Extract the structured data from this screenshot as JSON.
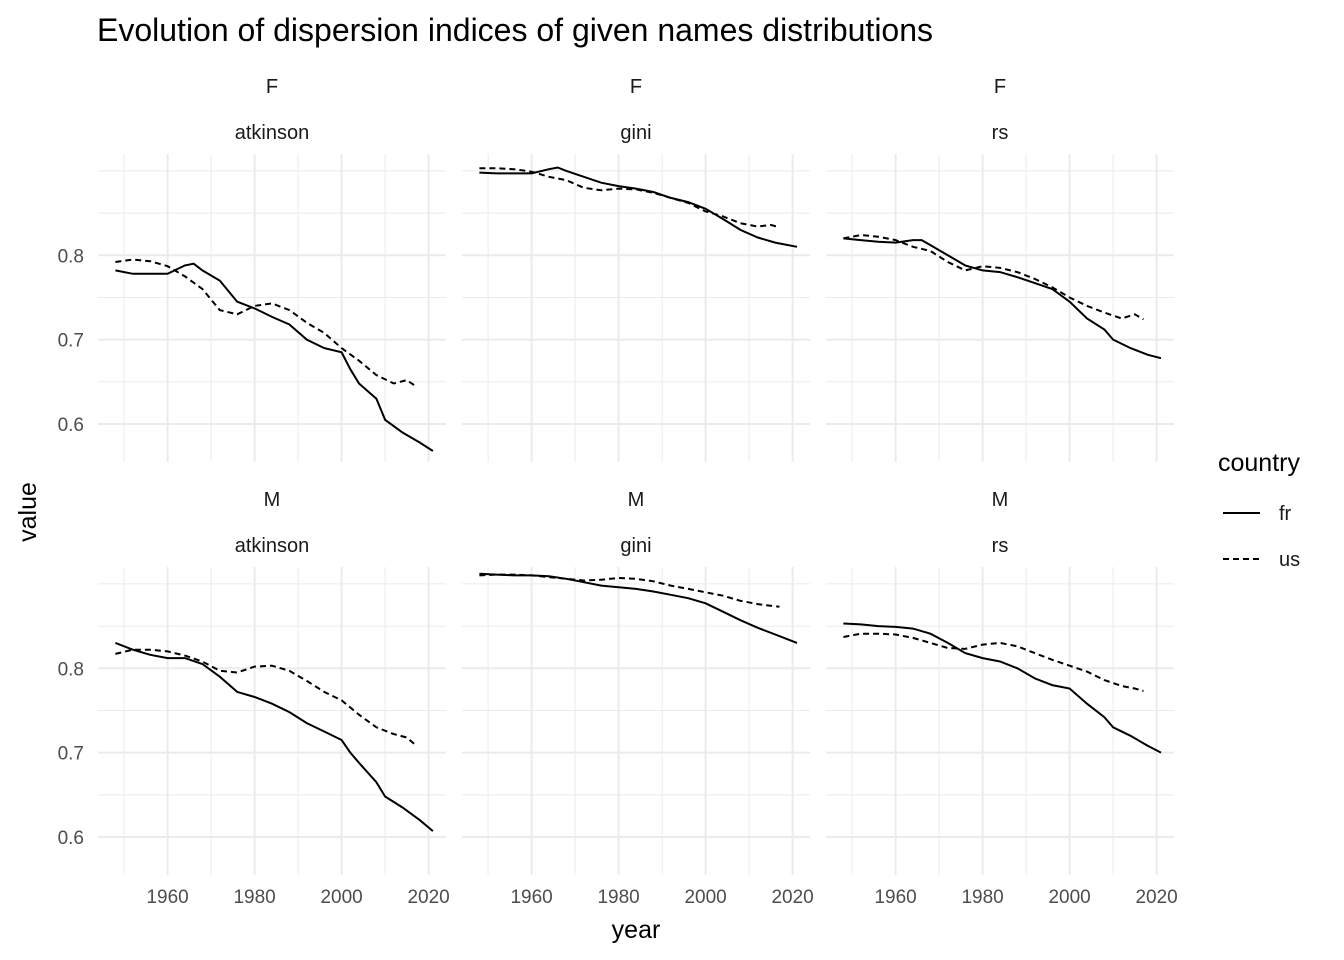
{
  "chart_data": {
    "type": "line",
    "title": "Evolution of dispersion indices of given names distributions",
    "xlabel": "year",
    "ylabel": "value",
    "x_ticks": [
      1960,
      1980,
      2000,
      2020
    ],
    "xlim": [
      1944,
      2024
    ],
    "legend": {
      "title": "country",
      "placement": "right",
      "entries": [
        {
          "label": "fr",
          "linetype": "solid"
        },
        {
          "label": "us",
          "linetype": "dashed"
        }
      ]
    },
    "grid": true,
    "rows": [
      {
        "strip": "F",
        "ylim": [
          0.555,
          0.92
        ],
        "y_ticks": [
          0.6,
          0.7,
          0.8
        ],
        "y_tick_labels": [
          "0.6",
          "0.7",
          "0.8"
        ]
      },
      {
        "strip": "M",
        "ylim": [
          0.555,
          0.92
        ],
        "y_ticks": [
          0.6,
          0.7,
          0.8
        ],
        "y_tick_labels": [
          "0.6",
          "0.7",
          "0.8"
        ]
      }
    ],
    "panels": [
      {
        "row": 0,
        "col": 0,
        "strip_top": "F",
        "strip_bottom": "atkinson",
        "series": [
          {
            "name": "fr",
            "x": [
              1948,
              1952,
              1956,
              1960,
              1964,
              1966,
              1968,
              1972,
              1976,
              1980,
              1984,
              1988,
              1992,
              1996,
              2000,
              2002,
              2004,
              2008,
              2010,
              2014,
              2018,
              2021
            ],
            "y": [
              0.782,
              0.778,
              0.778,
              0.778,
              0.788,
              0.79,
              0.782,
              0.77,
              0.745,
              0.737,
              0.727,
              0.718,
              0.7,
              0.69,
              0.685,
              0.665,
              0.648,
              0.63,
              0.605,
              0.59,
              0.578,
              0.568
            ]
          },
          {
            "name": "us",
            "x": [
              1948,
              1952,
              1956,
              1960,
              1964,
              1968,
              1972,
              1976,
              1980,
              1984,
              1988,
              1992,
              1996,
              2000,
              2004,
              2008,
              2012,
              2015,
              2017
            ],
            "y": [
              0.792,
              0.795,
              0.793,
              0.787,
              0.775,
              0.76,
              0.735,
              0.73,
              0.74,
              0.743,
              0.735,
              0.72,
              0.708,
              0.69,
              0.675,
              0.658,
              0.648,
              0.652,
              0.645
            ]
          }
        ]
      },
      {
        "row": 0,
        "col": 1,
        "strip_top": "F",
        "strip_bottom": "gini",
        "series": [
          {
            "name": "fr",
            "x": [
              1948,
              1952,
              1956,
              1960,
              1964,
              1966,
              1968,
              1972,
              1976,
              1980,
              1984,
              1988,
              1992,
              1996,
              2000,
              2004,
              2008,
              2012,
              2016,
              2021
            ],
            "y": [
              0.898,
              0.897,
              0.897,
              0.897,
              0.902,
              0.904,
              0.9,
              0.893,
              0.886,
              0.882,
              0.879,
              0.875,
              0.868,
              0.863,
              0.855,
              0.843,
              0.83,
              0.821,
              0.815,
              0.81
            ]
          },
          {
            "name": "us",
            "x": [
              1948,
              1952,
              1956,
              1960,
              1964,
              1968,
              1972,
              1976,
              1980,
              1984,
              1988,
              1992,
              1996,
              2000,
              2004,
              2008,
              2012,
              2015,
              2017
            ],
            "y": [
              0.903,
              0.903,
              0.902,
              0.899,
              0.893,
              0.889,
              0.88,
              0.877,
              0.879,
              0.878,
              0.874,
              0.868,
              0.862,
              0.852,
              0.846,
              0.838,
              0.834,
              0.836,
              0.833
            ]
          }
        ]
      },
      {
        "row": 0,
        "col": 2,
        "strip_top": "F",
        "strip_bottom": "rs",
        "series": [
          {
            "name": "fr",
            "x": [
              1948,
              1952,
              1956,
              1960,
              1964,
              1966,
              1968,
              1972,
              1976,
              1980,
              1984,
              1988,
              1992,
              1996,
              2000,
              2004,
              2008,
              2010,
              2014,
              2018,
              2021
            ],
            "y": [
              0.82,
              0.818,
              0.816,
              0.815,
              0.818,
              0.818,
              0.812,
              0.8,
              0.788,
              0.782,
              0.78,
              0.774,
              0.767,
              0.76,
              0.745,
              0.725,
              0.712,
              0.7,
              0.69,
              0.682,
              0.678
            ]
          },
          {
            "name": "us",
            "x": [
              1948,
              1952,
              1956,
              1960,
              1964,
              1968,
              1972,
              1976,
              1980,
              1984,
              1988,
              1992,
              1996,
              2000,
              2004,
              2008,
              2012,
              2015,
              2017
            ],
            "y": [
              0.82,
              0.824,
              0.822,
              0.818,
              0.81,
              0.805,
              0.792,
              0.782,
              0.787,
              0.785,
              0.78,
              0.772,
              0.762,
              0.75,
              0.74,
              0.732,
              0.725,
              0.73,
              0.724
            ]
          }
        ]
      },
      {
        "row": 1,
        "col": 0,
        "strip_top": "M",
        "strip_bottom": "atkinson",
        "series": [
          {
            "name": "fr",
            "x": [
              1948,
              1952,
              1956,
              1960,
              1964,
              1968,
              1972,
              1976,
              1980,
              1984,
              1988,
              1992,
              1996,
              2000,
              2002,
              2004,
              2008,
              2010,
              2014,
              2018,
              2021
            ],
            "y": [
              0.83,
              0.822,
              0.816,
              0.812,
              0.812,
              0.805,
              0.79,
              0.772,
              0.766,
              0.758,
              0.748,
              0.735,
              0.725,
              0.715,
              0.7,
              0.688,
              0.665,
              0.648,
              0.635,
              0.62,
              0.607
            ]
          },
          {
            "name": "us",
            "x": [
              1948,
              1952,
              1956,
              1960,
              1964,
              1968,
              1972,
              1976,
              1980,
              1984,
              1988,
              1992,
              1996,
              2000,
              2004,
              2008,
              2012,
              2015,
              2017
            ],
            "y": [
              0.817,
              0.822,
              0.822,
              0.82,
              0.815,
              0.808,
              0.797,
              0.795,
              0.802,
              0.803,
              0.797,
              0.785,
              0.772,
              0.762,
              0.745,
              0.73,
              0.722,
              0.718,
              0.709
            ]
          }
        ]
      },
      {
        "row": 1,
        "col": 1,
        "strip_top": "M",
        "strip_bottom": "gini",
        "series": [
          {
            "name": "fr",
            "x": [
              1948,
              1952,
              1956,
              1960,
              1964,
              1968,
              1972,
              1976,
              1980,
              1984,
              1988,
              1992,
              1996,
              2000,
              2004,
              2008,
              2012,
              2016,
              2021
            ],
            "y": [
              0.912,
              0.911,
              0.91,
              0.91,
              0.909,
              0.906,
              0.902,
              0.898,
              0.896,
              0.894,
              0.891,
              0.887,
              0.883,
              0.877,
              0.867,
              0.857,
              0.848,
              0.84,
              0.83
            ]
          },
          {
            "name": "us",
            "x": [
              1948,
              1952,
              1956,
              1960,
              1964,
              1968,
              1972,
              1976,
              1980,
              1984,
              1988,
              1992,
              1996,
              2000,
              2004,
              2008,
              2012,
              2015,
              2017
            ],
            "y": [
              0.91,
              0.911,
              0.911,
              0.91,
              0.908,
              0.906,
              0.904,
              0.905,
              0.907,
              0.906,
              0.903,
              0.898,
              0.894,
              0.89,
              0.886,
              0.88,
              0.876,
              0.874,
              0.873
            ]
          }
        ]
      },
      {
        "row": 1,
        "col": 2,
        "strip_top": "M",
        "strip_bottom": "rs",
        "series": [
          {
            "name": "fr",
            "x": [
              1948,
              1952,
              1956,
              1960,
              1964,
              1968,
              1972,
              1976,
              1980,
              1984,
              1988,
              1992,
              1996,
              2000,
              2004,
              2008,
              2010,
              2014,
              2018,
              2021
            ],
            "y": [
              0.853,
              0.852,
              0.85,
              0.849,
              0.847,
              0.841,
              0.83,
              0.818,
              0.812,
              0.808,
              0.8,
              0.788,
              0.78,
              0.776,
              0.758,
              0.742,
              0.73,
              0.72,
              0.708,
              0.7
            ]
          },
          {
            "name": "us",
            "x": [
              1948,
              1952,
              1956,
              1960,
              1964,
              1968,
              1972,
              1976,
              1980,
              1984,
              1988,
              1992,
              1996,
              2000,
              2004,
              2008,
              2012,
              2015,
              2017
            ],
            "y": [
              0.837,
              0.841,
              0.841,
              0.84,
              0.836,
              0.83,
              0.824,
              0.823,
              0.828,
              0.83,
              0.826,
              0.818,
              0.81,
              0.803,
              0.796,
              0.786,
              0.779,
              0.776,
              0.773
            ]
          }
        ]
      }
    ]
  }
}
